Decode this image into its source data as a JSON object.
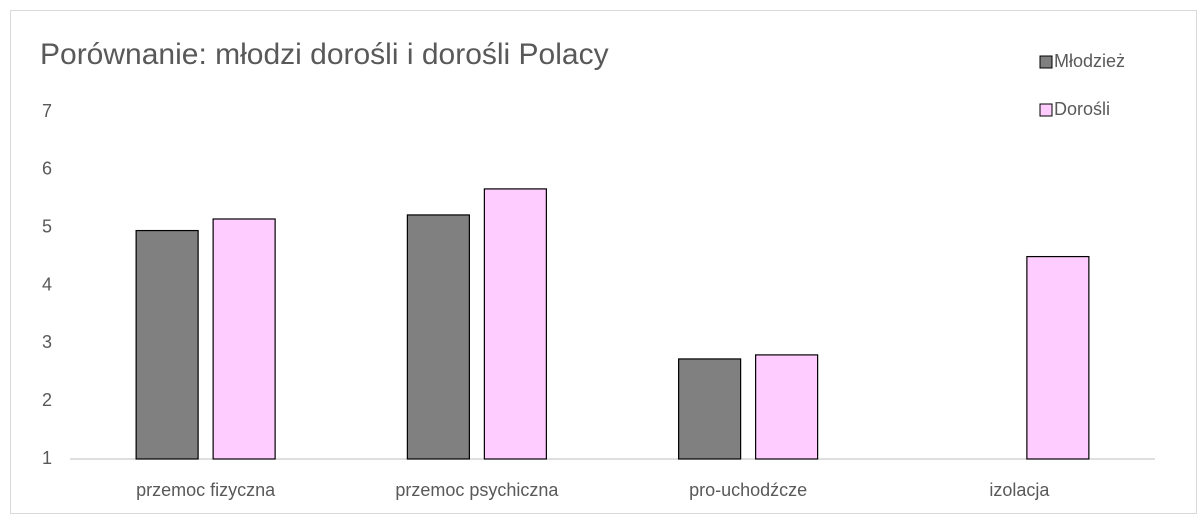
{
  "chart_data": {
    "type": "bar",
    "title": "Porównanie: młodzi dorośli i dorośli Polacy",
    "categories": [
      "przemoc fizyczna",
      "przemoc psychiczna",
      "pro-uchodźcze",
      "izolacja"
    ],
    "series": [
      {
        "name": "Młodzież",
        "color": "#808080",
        "values": [
          4.95,
          5.22,
          2.73,
          null
        ]
      },
      {
        "name": "Dorośli",
        "color": "#ffccff",
        "values": [
          5.15,
          5.67,
          2.8,
          4.5
        ]
      }
    ],
    "ylim": [
      1,
      7
    ],
    "yticks": [
      1,
      2,
      3,
      4,
      5,
      6,
      7
    ],
    "grid": false,
    "legend": "top-right"
  }
}
